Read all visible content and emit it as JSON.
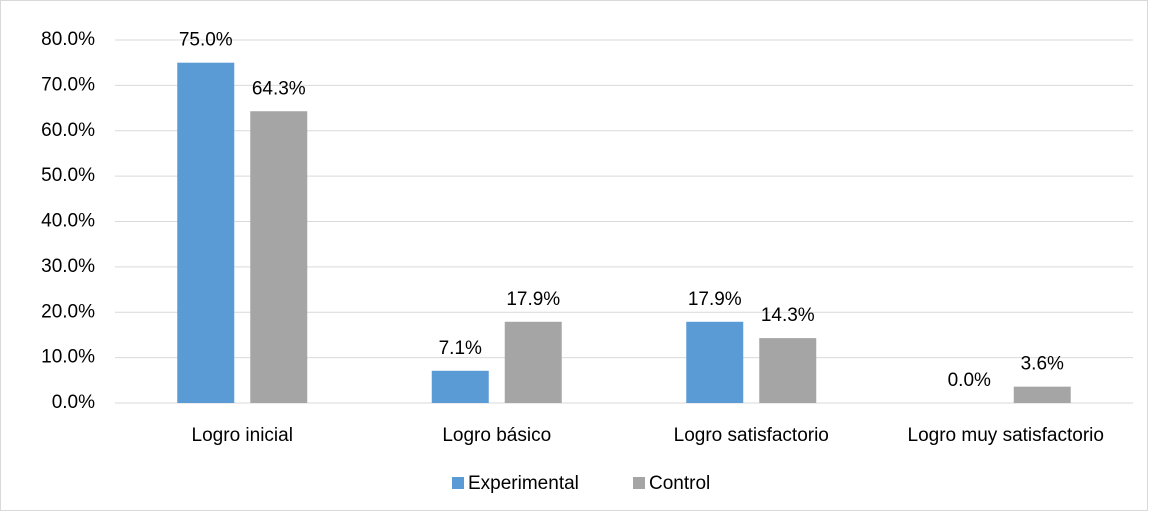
{
  "chart_data": {
    "type": "bar",
    "categories": [
      "Logro inicial",
      "Logro básico",
      "Logro satisfactorio",
      "Logro muy satisfactorio"
    ],
    "series": [
      {
        "name": "Experimental",
        "color": "#5b9bd5",
        "values": [
          75.0,
          7.1,
          17.9,
          0.0
        ],
        "value_labels": [
          "75.0%",
          "7.1%",
          "17.9%",
          "0.0%"
        ]
      },
      {
        "name": "Control",
        "color": "#a5a5a5",
        "values": [
          64.3,
          17.9,
          14.3,
          3.6
        ],
        "value_labels": [
          "64.3%",
          "17.9%",
          "14.3%",
          "3.6%"
        ]
      }
    ],
    "ylim": [
      0,
      80
    ],
    "yticks": [
      {
        "value": 0,
        "label": "0.0%"
      },
      {
        "value": 10,
        "label": "10.0%"
      },
      {
        "value": 20,
        "label": "20.0%"
      },
      {
        "value": 30,
        "label": "30.0%"
      },
      {
        "value": 40,
        "label": "40.0%"
      },
      {
        "value": 50,
        "label": "50.0%"
      },
      {
        "value": 60,
        "label": "60.0%"
      },
      {
        "value": 70,
        "label": "70.0%"
      },
      {
        "value": 80,
        "label": "80.0%"
      }
    ],
    "grid": true,
    "legend": "bottom"
  }
}
